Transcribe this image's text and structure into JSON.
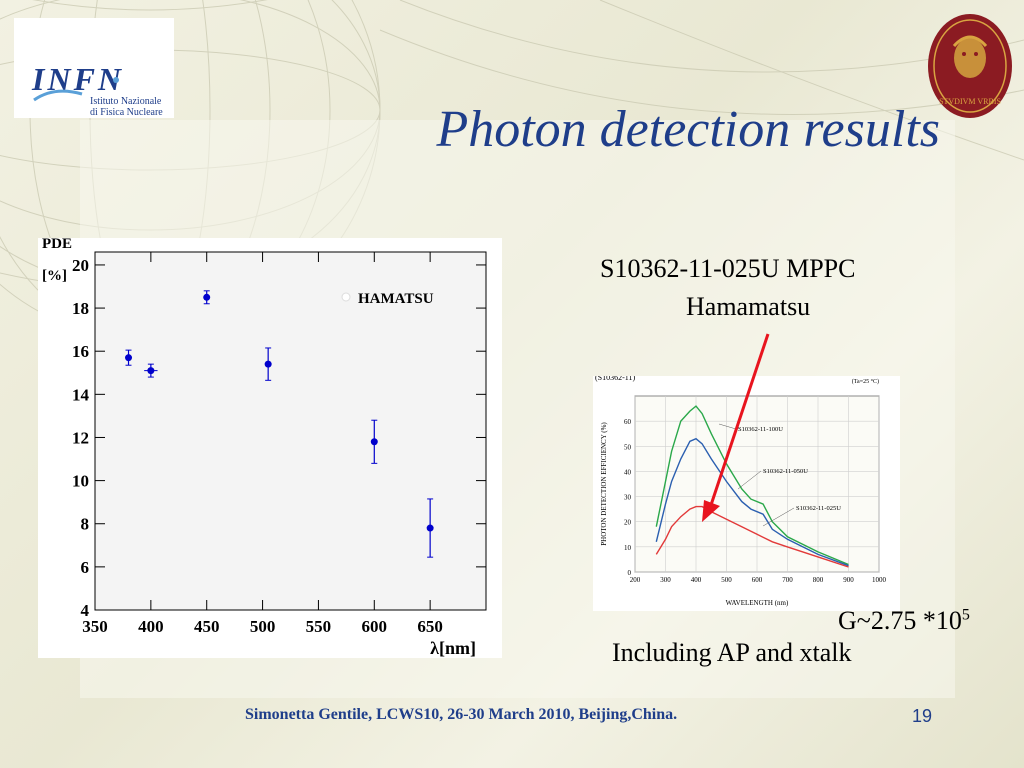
{
  "slide": {
    "title": "Photon detection results",
    "device_line1": "S10362-11-025U MPPC",
    "device_line2": "Hamamatsu",
    "gain_prefix": "G~2.75 *10",
    "gain_exp": "5",
    "ap_note": "Including AP and xtalk",
    "footer": "Simonetta Gentile,  LCWS10, 26-30 March 2010, Beijing,China.",
    "page_number": "19",
    "infn_logo": {
      "text": "INFN",
      "sub1": "Istituto Nazionale",
      "sub2": "di Fisica Nucleare"
    },
    "seal_text": "STVDIVM VRBIS",
    "accent_color": "#1f3e8a",
    "arrow_color": "#e8141e"
  },
  "chart_data": [
    {
      "type": "scatter",
      "ylabel": "PDE",
      "ylabel_unit": "[%]",
      "xlabel": "λ[nm]",
      "legend": "HAMATSU",
      "legend_position": "top-right",
      "xlim": [
        350,
        700
      ],
      "ylim": [
        4,
        20.6
      ],
      "xticks": [
        350,
        400,
        450,
        500,
        550,
        600,
        650
      ],
      "yticks": [
        4,
        6,
        8,
        10,
        12,
        14,
        16,
        18,
        20
      ],
      "points": [
        {
          "x": 380,
          "y": 15.7,
          "yerr": 0.35,
          "xerr": 0
        },
        {
          "x": 400,
          "y": 15.1,
          "yerr": 0.3,
          "xerr": 6
        },
        {
          "x": 450,
          "y": 18.5,
          "yerr": 0.3,
          "xerr": 0
        },
        {
          "x": 505,
          "y": 15.4,
          "yerr": 0.75,
          "xerr": 0
        },
        {
          "x": 600,
          "y": 11.8,
          "yerr": 1.0,
          "xerr": 0
        },
        {
          "x": 650,
          "y": 7.8,
          "yerr": 1.35,
          "xerr": 0
        }
      ]
    },
    {
      "type": "line",
      "ylabel": "PHOTON DETECTION EFFICIENCY (%)",
      "xlabel": "WAVELENGTH (nm)",
      "condition": "(Ta=25 °C)",
      "partial_label": "(S10362-11)",
      "xlim": [
        200,
        1000
      ],
      "ylim": [
        0,
        70
      ],
      "xticks": [
        200,
        300,
        400,
        500,
        600,
        700,
        800,
        900,
        1000
      ],
      "yticks": [
        0,
        10,
        20,
        30,
        40,
        50,
        60
      ],
      "series": [
        {
          "name": "S10362-11-100U",
          "color": "#2aa84a",
          "points": [
            [
              270,
              18
            ],
            [
              300,
              36
            ],
            [
              320,
              48
            ],
            [
              350,
              60
            ],
            [
              380,
              64
            ],
            [
              400,
              66
            ],
            [
              420,
              63
            ],
            [
              450,
              55
            ],
            [
              500,
              43
            ],
            [
              550,
              33
            ],
            [
              580,
              29
            ],
            [
              620,
              27
            ],
            [
              650,
              20
            ],
            [
              700,
              14
            ],
            [
              800,
              8
            ],
            [
              900,
              3
            ]
          ]
        },
        {
          "name": "S10362-11-050U",
          "color": "#2b5fb0",
          "points": [
            [
              270,
              12
            ],
            [
              300,
              27
            ],
            [
              320,
              36
            ],
            [
              350,
              45
            ],
            [
              380,
              52
            ],
            [
              400,
              53
            ],
            [
              420,
              51
            ],
            [
              450,
              45
            ],
            [
              500,
              36
            ],
            [
              550,
              28
            ],
            [
              580,
              25
            ],
            [
              620,
              23
            ],
            [
              650,
              17
            ],
            [
              700,
              13
            ],
            [
              800,
              7
            ],
            [
              900,
              2.5
            ]
          ]
        },
        {
          "name": "S10362-11-025U",
          "color": "#e23a3a",
          "points": [
            [
              270,
              7
            ],
            [
              300,
              13
            ],
            [
              320,
              18
            ],
            [
              350,
              22
            ],
            [
              380,
              25
            ],
            [
              400,
              26
            ],
            [
              420,
              26
            ],
            [
              450,
              24
            ],
            [
              500,
              21
            ],
            [
              550,
              18
            ],
            [
              600,
              15
            ],
            [
              650,
              12
            ],
            [
              700,
              10
            ],
            [
              800,
              6
            ],
            [
              900,
              2
            ]
          ]
        }
      ]
    }
  ]
}
